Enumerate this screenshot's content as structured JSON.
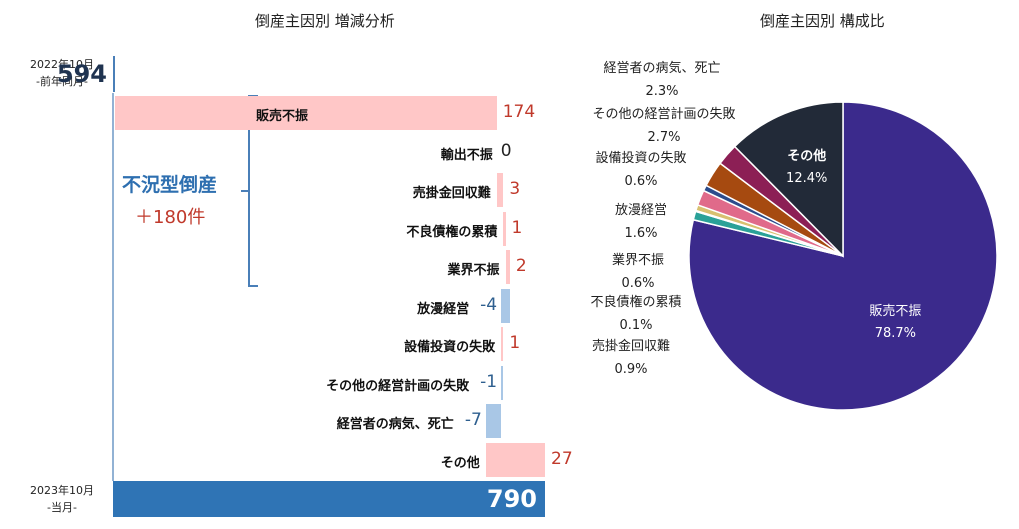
{
  "titles": {
    "left": "倒産主因別 増減分析",
    "right": "倒産主因別 構成比"
  },
  "periods": {
    "start": {
      "line1": "2022年10月",
      "line2": "-前年同月-",
      "value": 594
    },
    "end": {
      "line1": "2023年10月",
      "line2": "-当月-",
      "value": 790
    }
  },
  "group": {
    "label": "不況型倒産",
    "value": "＋180件"
  },
  "colors": {
    "start_bar": "#dce9f6",
    "end_bar": "#2f74b5",
    "increase": "#ffc7c7",
    "decrease": "#a9c7e6",
    "pos_text": "#c0392b",
    "neg_text": "#2e5f8f"
  },
  "chart_data": [
    {
      "type": "waterfall",
      "title": "倒産主因別 増減分析",
      "start": {
        "label": "2022年10月",
        "value": 594
      },
      "end": {
        "label": "2023年10月",
        "value": 790
      },
      "categories": [
        "販売不振",
        "輸出不振",
        "売掛金回収難",
        "不良債権の累積",
        "業界不振",
        "放漫経営",
        "設備投資の失敗",
        "その他の経営計画の失敗",
        "経営者の病気、死亡",
        "その他"
      ],
      "values": [
        174,
        0,
        3,
        1,
        2,
        -4,
        1,
        -1,
        -7,
        27
      ]
    },
    {
      "type": "pie",
      "title": "倒産主因別 構成比",
      "slices": [
        {
          "label": "販売不振",
          "value": 78.7,
          "pct": "78.7%",
          "color": "#3b2a8c"
        },
        {
          "label": "売掛金回収難",
          "value": 0.9,
          "pct": "0.9%",
          "color": "#2aa198"
        },
        {
          "label": "不良債権の累積",
          "value": 0.1,
          "pct": "0.1%",
          "color": "#b0b060"
        },
        {
          "label": "業界不振",
          "value": 0.6,
          "pct": "0.6%",
          "color": "#d8c070"
        },
        {
          "label": "放漫経営",
          "value": 1.6,
          "pct": "1.6%",
          "color": "#e06a8a"
        },
        {
          "label": "設備投資の失敗",
          "value": 0.6,
          "pct": "0.6%",
          "color": "#2c4c8c"
        },
        {
          "label": "その他の経営計画の失敗",
          "value": 2.7,
          "pct": "2.7%",
          "color": "#a64a10"
        },
        {
          "label": "経営者の病気、死亡",
          "value": 2.3,
          "pct": "2.3%",
          "color": "#8c1f55"
        },
        {
          "label": "その他",
          "value": 12.4,
          "pct": "12.4%",
          "color": "#222a38"
        }
      ]
    }
  ]
}
